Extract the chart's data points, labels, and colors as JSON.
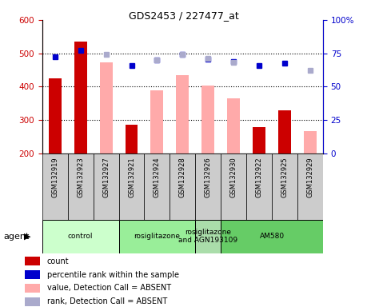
{
  "title": "GDS2453 / 227477_at",
  "samples": [
    "GSM132919",
    "GSM132923",
    "GSM132927",
    "GSM132921",
    "GSM132924",
    "GSM132928",
    "GSM132926",
    "GSM132930",
    "GSM132922",
    "GSM132925",
    "GSM132929"
  ],
  "red_bars": [
    425,
    535,
    null,
    287,
    null,
    null,
    null,
    null,
    278,
    330,
    null
  ],
  "pink_bars": [
    null,
    null,
    472,
    null,
    390,
    435,
    403,
    365,
    null,
    null,
    268
  ],
  "blue_squares": [
    490,
    510,
    null,
    463,
    481,
    497,
    482,
    475,
    463,
    470,
    null
  ],
  "light_blue_squares": [
    null,
    null,
    497,
    null,
    480,
    498,
    486,
    474,
    null,
    null,
    450
  ],
  "ylim_left": [
    200,
    600
  ],
  "ylim_right": [
    0,
    100
  ],
  "yticks_left": [
    200,
    300,
    400,
    500,
    600
  ],
  "yticks_right": [
    0,
    25,
    50,
    75,
    100
  ],
  "ytick_right_labels": [
    "0",
    "25",
    "50",
    "75",
    "100%"
  ],
  "agent_groups": [
    {
      "label": "control",
      "start": 0,
      "end": 2,
      "color": "#ccffcc"
    },
    {
      "label": "rosiglitazone",
      "start": 3,
      "end": 5,
      "color": "#99ee99"
    },
    {
      "label": "rosiglitazone\nand AGN193109",
      "start": 6,
      "end": 6,
      "color": "#aaddaa"
    },
    {
      "label": "AM580",
      "start": 7,
      "end": 10,
      "color": "#66cc66"
    }
  ],
  "agent_label": "agent",
  "bar_width": 0.5,
  "red_color": "#cc0000",
  "pink_color": "#ffaaaa",
  "blue_color": "#0000cc",
  "light_blue_color": "#aaaacc",
  "bg_color": "#ffffff",
  "legend_items": [
    {
      "label": "count",
      "color": "#cc0000"
    },
    {
      "label": "percentile rank within the sample",
      "color": "#0000cc"
    },
    {
      "label": "value, Detection Call = ABSENT",
      "color": "#ffaaaa"
    },
    {
      "label": "rank, Detection Call = ABSENT",
      "color": "#aaaacc"
    }
  ],
  "gridline_values": [
    300,
    400,
    500
  ],
  "xtick_bg_color": "#cccccc"
}
